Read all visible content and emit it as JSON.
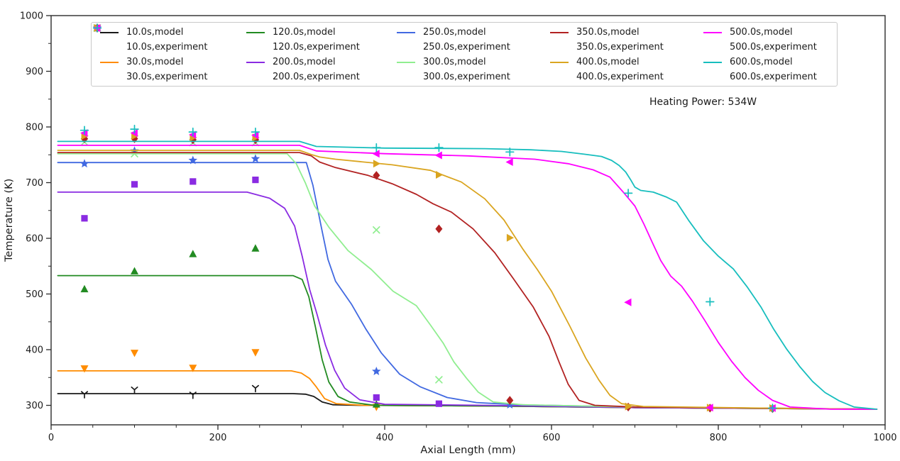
{
  "chart_data": {
    "type": "line",
    "title": "",
    "xlabel": "Axial Length (mm)",
    "ylabel": "Temperature (K)",
    "annotation": "Heating Power: 534W",
    "xlim": [
      0,
      1000
    ],
    "ylim": [
      265,
      1000
    ],
    "x_ticks": [
      0,
      200,
      400,
      600,
      800,
      1000
    ],
    "y_ticks": [
      300,
      400,
      500,
      600,
      700,
      800,
      900,
      1000
    ],
    "x_minor_step": 50,
    "y_minor_step": 50,
    "grid": false,
    "legend_position": "upper center",
    "legend_columns": 5,
    "series": [
      {
        "name": "10.0s,model",
        "kind": "line",
        "color": "#1a1a1a",
        "points": [
          [
            8,
            321
          ],
          [
            290,
            321
          ],
          [
            305,
            320
          ],
          [
            315,
            316
          ],
          [
            325,
            306
          ],
          [
            338,
            301
          ],
          [
            370,
            300
          ],
          [
            520,
            299
          ],
          [
            700,
            296
          ],
          [
            990,
            293
          ]
        ]
      },
      {
        "name": "10.0s,experiment",
        "kind": "scatter",
        "marker": "y",
        "color": "#1a1a1a",
        "points": [
          [
            40,
            320
          ],
          [
            100,
            328
          ],
          [
            170,
            319
          ],
          [
            245,
            331
          ]
        ]
      },
      {
        "name": "30.0s,model",
        "kind": "line",
        "color": "#ff8c00",
        "points": [
          [
            8,
            362
          ],
          [
            288,
            362
          ],
          [
            300,
            358
          ],
          [
            310,
            348
          ],
          [
            318,
            333
          ],
          [
            328,
            312
          ],
          [
            342,
            303
          ],
          [
            375,
            300
          ],
          [
            520,
            299
          ],
          [
            700,
            296
          ],
          [
            990,
            293
          ]
        ]
      },
      {
        "name": "30.0s,experiment",
        "kind": "scatter",
        "marker": "triangle-down",
        "color": "#ff8c00",
        "points": [
          [
            40,
            366
          ],
          [
            100,
            394
          ],
          [
            170,
            367
          ],
          [
            245,
            395
          ],
          [
            390,
            297
          ]
        ]
      },
      {
        "name": "120.0s,model",
        "kind": "line",
        "color": "#228b22",
        "points": [
          [
            8,
            533
          ],
          [
            290,
            533
          ],
          [
            301,
            526
          ],
          [
            309,
            495
          ],
          [
            317,
            440
          ],
          [
            325,
            382
          ],
          [
            333,
            342
          ],
          [
            344,
            316
          ],
          [
            358,
            306
          ],
          [
            388,
            300
          ],
          [
            520,
            299
          ],
          [
            700,
            296
          ],
          [
            990,
            293
          ]
        ]
      },
      {
        "name": "120.0s,experiment",
        "kind": "scatter",
        "marker": "triangle-up",
        "color": "#228b22",
        "points": [
          [
            40,
            509
          ],
          [
            100,
            541
          ],
          [
            170,
            572
          ],
          [
            245,
            582
          ],
          [
            390,
            302
          ]
        ]
      },
      {
        "name": "200.0s,model",
        "kind": "line",
        "color": "#8a2be2",
        "points": [
          [
            8,
            683
          ],
          [
            235,
            683
          ],
          [
            262,
            672
          ],
          [
            280,
            654
          ],
          [
            292,
            622
          ],
          [
            301,
            568
          ],
          [
            310,
            508
          ],
          [
            319,
            463
          ],
          [
            329,
            408
          ],
          [
            340,
            363
          ],
          [
            352,
            331
          ],
          [
            370,
            310
          ],
          [
            400,
            302
          ],
          [
            520,
            300
          ],
          [
            700,
            296
          ],
          [
            990,
            293
          ]
        ]
      },
      {
        "name": "200.0s,experiment",
        "kind": "scatter",
        "marker": "square",
        "color": "#8a2be2",
        "points": [
          [
            40,
            636
          ],
          [
            100,
            697
          ],
          [
            170,
            702
          ],
          [
            245,
            705
          ],
          [
            390,
            314
          ],
          [
            465,
            303
          ]
        ]
      },
      {
        "name": "250.0s,model",
        "kind": "line",
        "color": "#4169e1",
        "points": [
          [
            8,
            736
          ],
          [
            306,
            736
          ],
          [
            314,
            695
          ],
          [
            324,
            620
          ],
          [
            332,
            562
          ],
          [
            341,
            523
          ],
          [
            360,
            482
          ],
          [
            377,
            438
          ],
          [
            396,
            394
          ],
          [
            418,
            356
          ],
          [
            443,
            333
          ],
          [
            475,
            314
          ],
          [
            510,
            305
          ],
          [
            560,
            301
          ],
          [
            700,
            297
          ],
          [
            990,
            293
          ]
        ]
      },
      {
        "name": "250.0s,experiment",
        "kind": "scatter",
        "marker": "star",
        "color": "#4169e1",
        "points": [
          [
            40,
            734
          ],
          [
            100,
            757
          ],
          [
            170,
            740
          ],
          [
            245,
            743
          ],
          [
            390,
            361
          ],
          [
            550,
            301
          ]
        ]
      },
      {
        "name": "300.0s,model",
        "kind": "line",
        "color": "#90ee90",
        "points": [
          [
            8,
            752
          ],
          [
            283,
            752
          ],
          [
            294,
            734
          ],
          [
            305,
            699
          ],
          [
            316,
            658
          ],
          [
            333,
            620
          ],
          [
            356,
            578
          ],
          [
            384,
            544
          ],
          [
            410,
            505
          ],
          [
            438,
            479
          ],
          [
            455,
            444
          ],
          [
            470,
            412
          ],
          [
            483,
            378
          ],
          [
            498,
            349
          ],
          [
            512,
            324
          ],
          [
            530,
            306
          ],
          [
            565,
            301
          ],
          [
            700,
            297
          ],
          [
            990,
            293
          ]
        ]
      },
      {
        "name": "300.0s,experiment",
        "kind": "scatter",
        "marker": "x",
        "color": "#90ee90",
        "points": [
          [
            40,
            773
          ],
          [
            100,
            752
          ],
          [
            170,
            772
          ],
          [
            245,
            772
          ],
          [
            390,
            615
          ],
          [
            465,
            346
          ]
        ]
      },
      {
        "name": "350.0s,model",
        "kind": "line",
        "color": "#b22222",
        "points": [
          [
            8,
            754
          ],
          [
            298,
            754
          ],
          [
            312,
            748
          ],
          [
            322,
            737
          ],
          [
            341,
            727
          ],
          [
            380,
            713
          ],
          [
            409,
            698
          ],
          [
            438,
            679
          ],
          [
            458,
            662
          ],
          [
            480,
            647
          ],
          [
            506,
            617
          ],
          [
            532,
            574
          ],
          [
            554,
            528
          ],
          [
            578,
            477
          ],
          [
            597,
            424
          ],
          [
            609,
            378
          ],
          [
            620,
            338
          ],
          [
            633,
            309
          ],
          [
            652,
            300
          ],
          [
            700,
            297
          ],
          [
            990,
            293
          ]
        ]
      },
      {
        "name": "350.0s,experiment",
        "kind": "scatter",
        "marker": "diamond",
        "color": "#b22222",
        "points": [
          [
            40,
            779
          ],
          [
            100,
            779
          ],
          [
            170,
            777
          ],
          [
            245,
            777
          ],
          [
            390,
            713
          ],
          [
            465,
            617
          ],
          [
            550,
            309
          ],
          [
            692,
            297
          ],
          [
            790,
            295
          ],
          [
            865,
            294
          ]
        ]
      },
      {
        "name": "400.0s,model",
        "kind": "line",
        "color": "#daa520",
        "points": [
          [
            8,
            758
          ],
          [
            298,
            758
          ],
          [
            313,
            750
          ],
          [
            322,
            746
          ],
          [
            341,
            742
          ],
          [
            409,
            732
          ],
          [
            455,
            722
          ],
          [
            492,
            701
          ],
          [
            520,
            671
          ],
          [
            543,
            633
          ],
          [
            566,
            580
          ],
          [
            583,
            544
          ],
          [
            600,
            505
          ],
          [
            622,
            442
          ],
          [
            641,
            385
          ],
          [
            657,
            345
          ],
          [
            670,
            318
          ],
          [
            684,
            303
          ],
          [
            710,
            298
          ],
          [
            850,
            295
          ],
          [
            990,
            293
          ]
        ]
      },
      {
        "name": "400.0s,experiment",
        "kind": "scatter",
        "marker": "triangle-right",
        "color": "#daa520",
        "points": [
          [
            40,
            784
          ],
          [
            100,
            784
          ],
          [
            170,
            781
          ],
          [
            245,
            781
          ],
          [
            390,
            734
          ],
          [
            465,
            714
          ],
          [
            550,
            601
          ],
          [
            692,
            298
          ],
          [
            790,
            296
          ],
          [
            865,
            295
          ]
        ]
      },
      {
        "name": "500.0s,model",
        "kind": "line",
        "color": "#ff00ff",
        "points": [
          [
            8,
            767
          ],
          [
            298,
            767
          ],
          [
            318,
            757
          ],
          [
            400,
            752
          ],
          [
            500,
            748
          ],
          [
            580,
            742
          ],
          [
            620,
            734
          ],
          [
            650,
            723
          ],
          [
            670,
            710
          ],
          [
            686,
            683
          ],
          [
            700,
            658
          ],
          [
            711,
            625
          ],
          [
            721,
            592
          ],
          [
            731,
            560
          ],
          [
            743,
            532
          ],
          [
            756,
            514
          ],
          [
            769,
            487
          ],
          [
            784,
            452
          ],
          [
            800,
            413
          ],
          [
            816,
            379
          ],
          [
            832,
            350
          ],
          [
            848,
            327
          ],
          [
            865,
            309
          ],
          [
            886,
            297
          ],
          [
            935,
            293
          ],
          [
            990,
            293
          ]
        ]
      },
      {
        "name": "500.0s,experiment",
        "kind": "scatter",
        "marker": "triangle-left",
        "color": "#ff00ff",
        "points": [
          [
            40,
            789
          ],
          [
            100,
            789
          ],
          [
            170,
            786
          ],
          [
            245,
            785
          ],
          [
            390,
            752
          ],
          [
            465,
            749
          ],
          [
            550,
            737
          ],
          [
            692,
            485
          ],
          [
            790,
            296
          ],
          [
            865,
            295
          ]
        ]
      },
      {
        "name": "600.0s,model",
        "kind": "line",
        "color": "#17bebe",
        "points": [
          [
            8,
            774
          ],
          [
            298,
            774
          ],
          [
            318,
            765
          ],
          [
            400,
            762
          ],
          [
            520,
            761
          ],
          [
            575,
            759
          ],
          [
            612,
            756
          ],
          [
            640,
            751
          ],
          [
            660,
            747
          ],
          [
            672,
            740
          ],
          [
            681,
            731
          ],
          [
            689,
            719
          ],
          [
            695,
            705
          ],
          [
            700,
            692
          ],
          [
            707,
            686
          ],
          [
            722,
            683
          ],
          [
            738,
            674
          ],
          [
            750,
            665
          ],
          [
            765,
            631
          ],
          [
            782,
            596
          ],
          [
            800,
            568
          ],
          [
            818,
            545
          ],
          [
            835,
            512
          ],
          [
            851,
            477
          ],
          [
            866,
            438
          ],
          [
            882,
            401
          ],
          [
            898,
            369
          ],
          [
            913,
            343
          ],
          [
            928,
            323
          ],
          [
            945,
            308
          ],
          [
            963,
            297
          ],
          [
            990,
            293
          ]
        ]
      },
      {
        "name": "600.0s,experiment",
        "kind": "scatter",
        "marker": "plus",
        "color": "#17bebe",
        "points": [
          [
            40,
            794
          ],
          [
            100,
            796
          ],
          [
            170,
            791
          ],
          [
            245,
            791
          ],
          [
            390,
            763
          ],
          [
            465,
            763
          ],
          [
            550,
            755
          ],
          [
            692,
            681
          ],
          [
            790,
            486
          ],
          [
            865,
            295
          ]
        ]
      }
    ]
  }
}
